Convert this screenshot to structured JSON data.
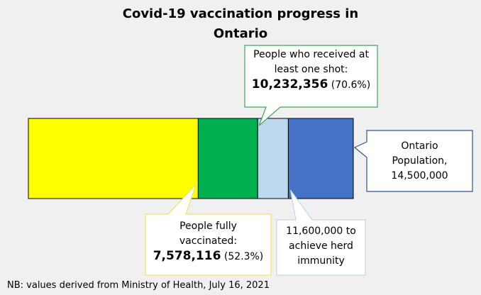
{
  "chart_data": {
    "type": "bar",
    "orientation": "horizontal",
    "stacked": true,
    "title": [
      "Covid-19 vaccination progress in",
      "Ontario"
    ],
    "xlim": [
      0,
      14500000
    ],
    "grid": false,
    "legend": "none",
    "series": [
      {
        "key": "fully",
        "value": 7578116,
        "color": "#FFFF00"
      },
      {
        "key": "one_shot",
        "value": 10232356,
        "color": "#00B050"
      },
      {
        "key": "herd",
        "value": 11600000,
        "color": "#BDD7EE"
      },
      {
        "key": "population",
        "value": 14500000,
        "color": "#4472C4"
      }
    ],
    "annotations": {
      "one_shot": {
        "lines": [
          "People who received at",
          "least one shot:"
        ],
        "value": "10,232,356",
        "pct": "(70.6%)",
        "border": "#3FA55B"
      },
      "fully": {
        "lines": [
          "People fully",
          "vaccinated:"
        ],
        "value": "7,578,116",
        "pct": "(52.3%)",
        "border": "#F2E15C"
      },
      "herd": {
        "lines": [
          "11,600,000 to",
          "achieve herd",
          "immunity"
        ],
        "border": "#BDD7EE"
      },
      "population": {
        "lines": [
          "Ontario",
          "Population,",
          "14,500,000"
        ],
        "border": "#2F5597"
      }
    },
    "footnote": "NB: values derived from Ministry of Health, July 16, 2021"
  }
}
